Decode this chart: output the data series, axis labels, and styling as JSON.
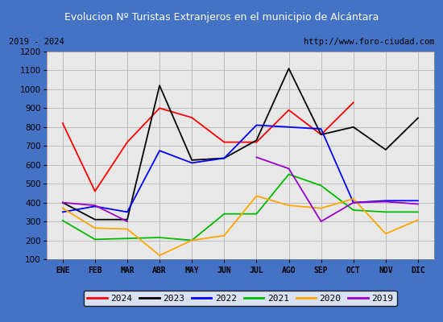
{
  "title": "Evolucion Nº Turistas Extranjeros en el municipio de Alcántara",
  "subtitle_left": "2019 - 2024",
  "subtitle_right": "http://www.foro-ciudad.com",
  "months": [
    "ENE",
    "FEB",
    "MAR",
    "ABR",
    "MAY",
    "JUN",
    "JUL",
    "AGO",
    "SEP",
    "OCT",
    "NOV",
    "DIC"
  ],
  "series_order": [
    "2024",
    "2023",
    "2022",
    "2021",
    "2020",
    "2019"
  ],
  "series": {
    "2024": {
      "color": "#ff0000",
      "data": [
        820,
        460,
        720,
        900,
        850,
        720,
        720,
        890,
        760,
        930,
        null,
        null
      ]
    },
    "2023": {
      "color": "#000000",
      "data": [
        400,
        310,
        310,
        1020,
        625,
        635,
        730,
        1110,
        760,
        800,
        680,
        848
      ]
    },
    "2022": {
      "color": "#0000ff",
      "data": [
        350,
        380,
        350,
        675,
        610,
        635,
        810,
        800,
        790,
        400,
        410,
        410
      ]
    },
    "2021": {
      "color": "#00bb00",
      "data": [
        305,
        205,
        210,
        215,
        200,
        340,
        340,
        550,
        490,
        360,
        350,
        350
      ]
    },
    "2020": {
      "color": "#ffa500",
      "data": [
        370,
        265,
        260,
        120,
        200,
        225,
        435,
        385,
        370,
        420,
        235,
        308
      ]
    },
    "2019": {
      "color": "#9900cc",
      "data": [
        400,
        385,
        300,
        null,
        null,
        null,
        640,
        580,
        300,
        400,
        405,
        392
      ]
    }
  },
  "ylim": [
    100,
    1200
  ],
  "yticks": [
    100,
    200,
    300,
    400,
    500,
    600,
    700,
    800,
    900,
    1000,
    1100,
    1200
  ],
  "title_bg_color": "#4472c4",
  "title_text_color": "#ffffff",
  "plot_bg_color": "#e8e8e8",
  "grid_color": "#bbbbbb",
  "outer_bg_color": "#4472c4",
  "subtitle_bg_color": "#d8d8d8",
  "legend_border_color": "#000000"
}
